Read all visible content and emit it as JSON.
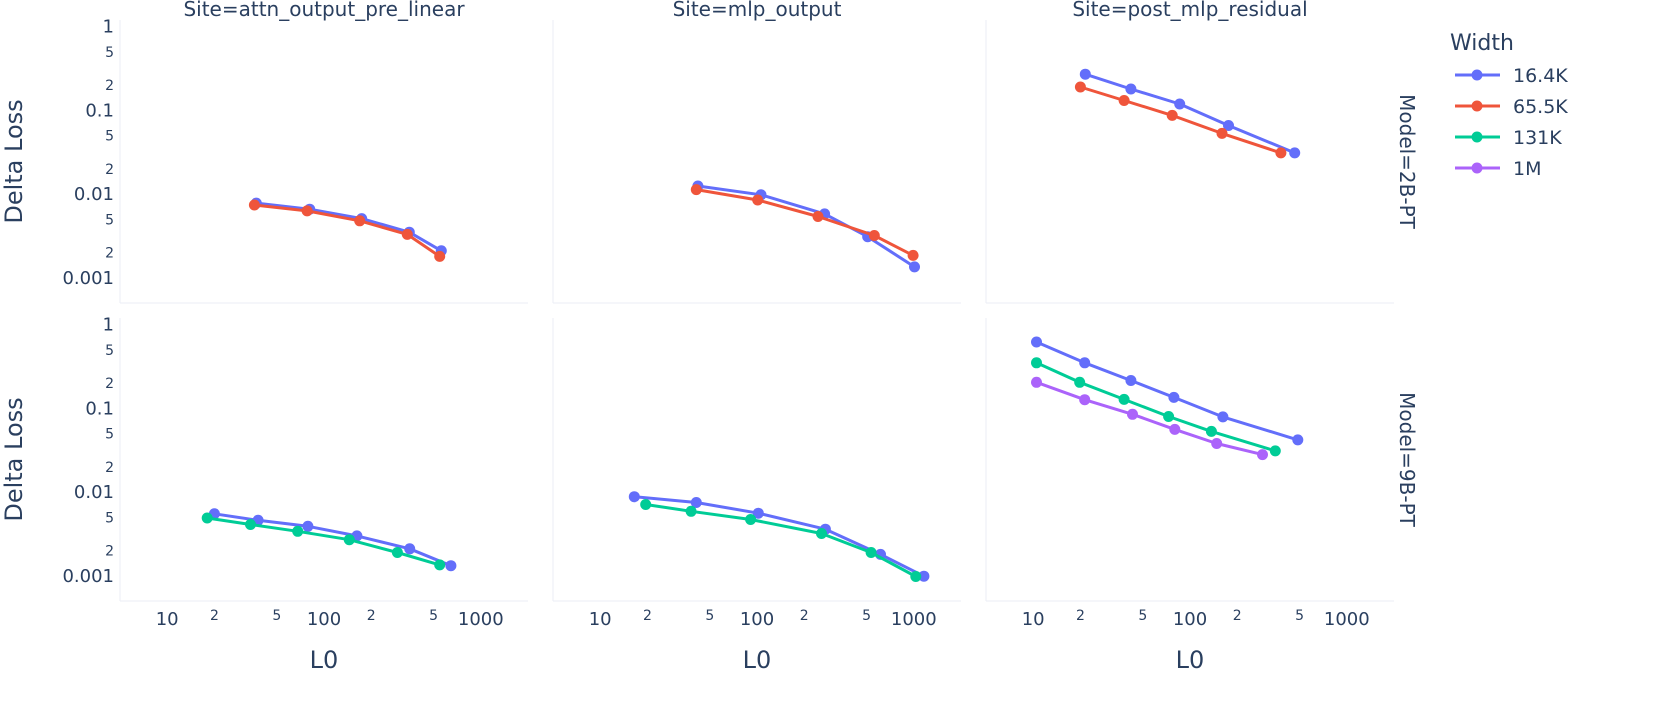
{
  "chart_data": {
    "type": "line",
    "xlabel": "L0",
    "ylabel": "Delta Loss",
    "xscale": "log",
    "yscale": "log",
    "xlim": [
      5,
      2000
    ],
    "ylim": [
      0.0005,
      1.2
    ],
    "x_ticks": [
      10,
      100,
      1000
    ],
    "x_tick_labels": [
      "10",
      "100",
      "1000"
    ],
    "x_minor_labels": [
      "2",
      "5",
      "2",
      "5"
    ],
    "y_ticks": [
      1,
      0.1,
      0.01,
      0.001
    ],
    "y_tick_labels": [
      "1",
      "0.1",
      "0.01",
      "0.001"
    ],
    "y_minor_labels": [
      "5",
      "2",
      "5",
      "2",
      "5",
      "2",
      "5",
      "2"
    ],
    "col_titles": [
      "Site=attn_output_pre_linear",
      "Site=mlp_output",
      "Site=post_mlp_residual"
    ],
    "row_titles": [
      "Model=2B-PT",
      "Model=9B-PT"
    ],
    "legend": {
      "title": "Width",
      "items": [
        {
          "name": "16.4K",
          "color": "#636efa"
        },
        {
          "name": "65.5K",
          "color": "#ef553b"
        },
        {
          "name": "131K",
          "color": "#00cc96"
        },
        {
          "name": "1M",
          "color": "#ab63fa"
        }
      ]
    },
    "grid": false,
    "legend_position": "top-right",
    "panels": [
      {
        "row": 0,
        "col": 0,
        "series": [
          {
            "name": "16.4K",
            "color": "#636efa",
            "x": [
              37,
              81,
              174,
              350,
              560
            ],
            "y": [
              0.0078,
              0.0066,
              0.0051,
              0.0035,
              0.0021
            ]
          },
          {
            "name": "65.5K",
            "color": "#ef553b",
            "x": [
              36,
              78,
              169,
              340,
              547
            ],
            "y": [
              0.0074,
              0.0063,
              0.0048,
              0.0033,
              0.0018
            ]
          }
        ]
      },
      {
        "row": 0,
        "col": 1,
        "series": [
          {
            "name": "16.4K",
            "color": "#636efa",
            "x": [
              42,
              106,
              270,
              508,
              1010
            ],
            "y": [
              0.0125,
              0.0098,
              0.0058,
              0.0031,
              0.00135
            ]
          },
          {
            "name": "65.5K",
            "color": "#ef553b",
            "x": [
              41,
              101,
              245,
              560,
              990
            ],
            "y": [
              0.0113,
              0.0085,
              0.0054,
              0.0032,
              0.00185
            ]
          }
        ]
      },
      {
        "row": 0,
        "col": 2,
        "series": [
          {
            "name": "16.4K",
            "color": "#636efa",
            "x": [
              21.5,
              42,
              86,
              176,
              465
            ],
            "y": [
              0.27,
              0.18,
              0.119,
              0.066,
              0.031
            ]
          },
          {
            "name": "65.5K",
            "color": "#ef553b",
            "x": [
              20,
              38,
              77,
              160,
              380
            ],
            "y": [
              0.19,
              0.131,
              0.087,
              0.053,
              0.031
            ]
          }
        ]
      },
      {
        "row": 1,
        "col": 0,
        "series": [
          {
            "name": "16.4K",
            "color": "#636efa",
            "x": [
              20,
              38,
              79,
              162,
              352,
              645
            ],
            "y": [
              0.0055,
              0.0046,
              0.0039,
              0.003,
              0.0021,
              0.00132
            ]
          },
          {
            "name": "131K",
            "color": "#00cc96",
            "x": [
              18,
              34,
              68,
              145,
              294,
              547
            ],
            "y": [
              0.0049,
              0.0041,
              0.0034,
              0.0027,
              0.0019,
              0.00135
            ]
          }
        ]
      },
      {
        "row": 1,
        "col": 1,
        "series": [
          {
            "name": "16.4K",
            "color": "#636efa",
            "x": [
              16.5,
              41,
              102,
              273,
              613,
              1160
            ],
            "y": [
              0.0088,
              0.0075,
              0.0056,
              0.0036,
              0.0018,
              0.00099
            ]
          },
          {
            "name": "131K",
            "color": "#00cc96",
            "x": [
              19.5,
              38,
              91,
              258,
              534,
              1030
            ],
            "y": [
              0.0071,
              0.0059,
              0.0047,
              0.0032,
              0.0019,
              0.00098
            ]
          }
        ]
      },
      {
        "row": 1,
        "col": 2,
        "series": [
          {
            "name": "16.4K",
            "color": "#636efa",
            "x": [
              10.5,
              21.3,
              42,
              79,
              162,
              487
            ],
            "y": [
              0.62,
              0.35,
              0.215,
              0.135,
              0.079,
              0.042
            ]
          },
          {
            "name": "131K",
            "color": "#00cc96",
            "x": [
              10.5,
              19.8,
              38,
              73,
              137,
              350
            ],
            "y": [
              0.35,
              0.205,
              0.128,
              0.08,
              0.053,
              0.031
            ]
          },
          {
            "name": "1M",
            "color": "#ab63fa",
            "x": [
              10.5,
              21.3,
              43,
              80,
              148,
              290
            ],
            "y": [
              0.205,
              0.127,
              0.085,
              0.056,
              0.038,
              0.028
            ]
          }
        ]
      }
    ]
  }
}
